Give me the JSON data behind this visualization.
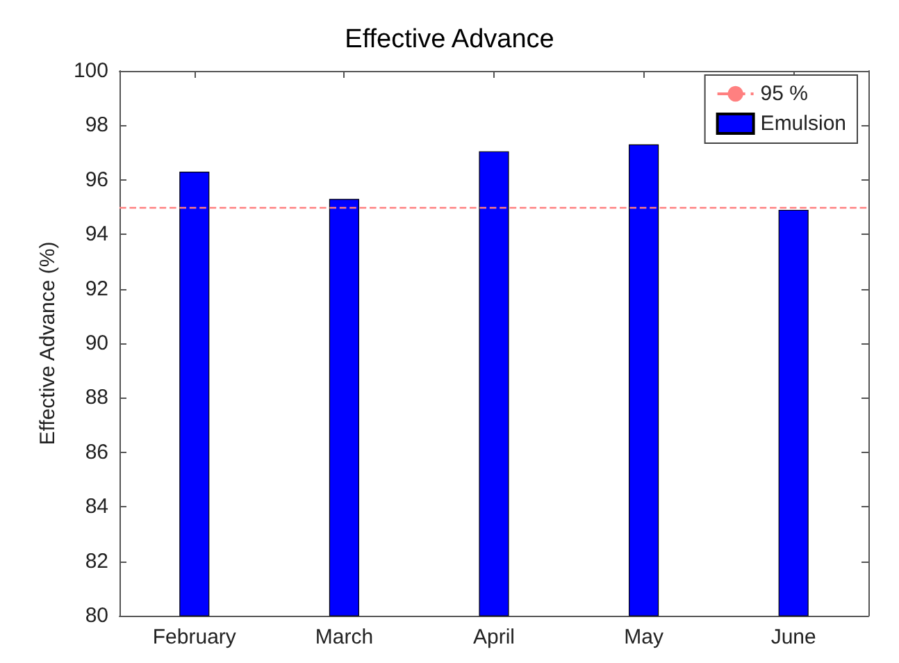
{
  "chart_data": {
    "type": "bar",
    "title": "Effective Advance",
    "ylabel": "Effective Advance (%)",
    "categories": [
      "February",
      "March",
      "April",
      "May",
      "June"
    ],
    "series": [
      {
        "name": "Emulsion",
        "color": "#0000ff",
        "values": [
          96.3,
          95.3,
          97.05,
          97.3,
          94.9
        ]
      }
    ],
    "ylim": [
      80,
      100
    ],
    "yticks": [
      80,
      82,
      84,
      86,
      88,
      90,
      92,
      94,
      96,
      98,
      100
    ],
    "ref_lines": [
      {
        "axis": "y",
        "value": 95,
        "label": "95 %",
        "color": "#ff8080",
        "line_style": "dashed"
      }
    ],
    "grid": false,
    "legend": "top right"
  }
}
